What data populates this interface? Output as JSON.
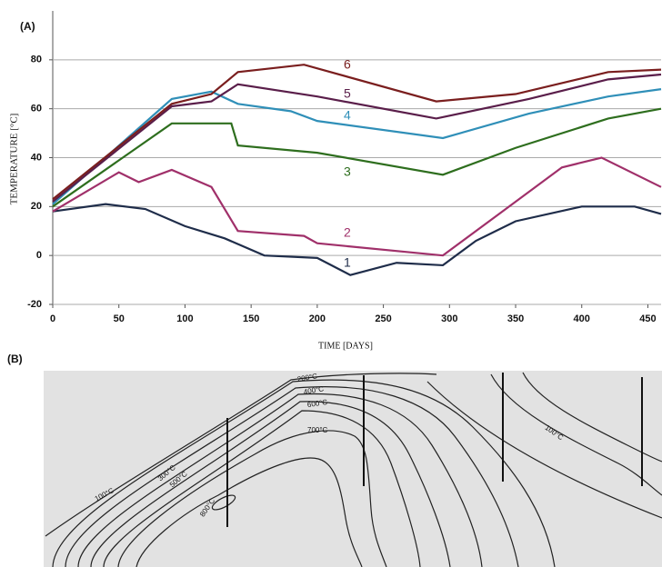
{
  "chart_data": {
    "type": "line",
    "panel_label": "(A)",
    "ylabel": "TEMPERATURE [°C]",
    "xlabel": "TIME [DAYS]",
    "xlim": [
      0,
      460
    ],
    "xticks": [
      0,
      50,
      100,
      150,
      200,
      250,
      300,
      350,
      400,
      450
    ],
    "ylim": [
      -20,
      100
    ],
    "yticks": [
      -20,
      0,
      20,
      40,
      60,
      80
    ],
    "grid": true,
    "series": [
      {
        "name": "1",
        "color": "#1f2d4a",
        "x": [
          0,
          40,
          70,
          100,
          130,
          160,
          200,
          225,
          260,
          295,
          320,
          350,
          400,
          440,
          460
        ],
        "values": [
          18,
          21,
          19,
          12,
          7,
          0,
          -1,
          -8,
          -3,
          -4,
          6,
          14,
          20,
          20,
          17
        ]
      },
      {
        "name": "2",
        "color": "#a0306a",
        "x": [
          0,
          50,
          65,
          90,
          120,
          140,
          190,
          200,
          295,
          340,
          385,
          415,
          460
        ],
        "values": [
          18,
          34,
          30,
          35,
          28,
          10,
          8,
          5,
          0,
          18,
          36,
          40,
          28
        ]
      },
      {
        "name": "3",
        "color": "#2e6e1e",
        "x": [
          0,
          90,
          135,
          140,
          200,
          295,
          350,
          420,
          460
        ],
        "values": [
          20,
          54,
          54,
          45,
          42,
          33,
          44,
          56,
          60
        ]
      },
      {
        "name": "4",
        "color": "#2f8fb8",
        "x": [
          0,
          90,
          120,
          140,
          180,
          200,
          295,
          360,
          420,
          460
        ],
        "values": [
          21,
          64,
          67,
          62,
          59,
          55,
          48,
          58,
          65,
          68
        ]
      },
      {
        "name": "5",
        "color": "#5a1e4a",
        "x": [
          0,
          90,
          120,
          140,
          200,
          290,
          360,
          420,
          460
        ],
        "values": [
          22,
          61,
          63,
          70,
          65,
          56,
          64,
          72,
          74
        ]
      },
      {
        "name": "6",
        "color": "#7a1e1e",
        "x": [
          0,
          90,
          120,
          140,
          190,
          290,
          350,
          420,
          460
        ],
        "values": [
          23,
          62,
          66,
          75,
          78,
          63,
          66,
          75,
          76
        ]
      }
    ]
  },
  "diagram": {
    "panel_label": "(B)",
    "contour_labels": [
      "200°C",
      "400°C",
      "600°C",
      "700°C",
      "100°C",
      "300°C",
      "500°C",
      "800°C",
      "100°C"
    ]
  }
}
